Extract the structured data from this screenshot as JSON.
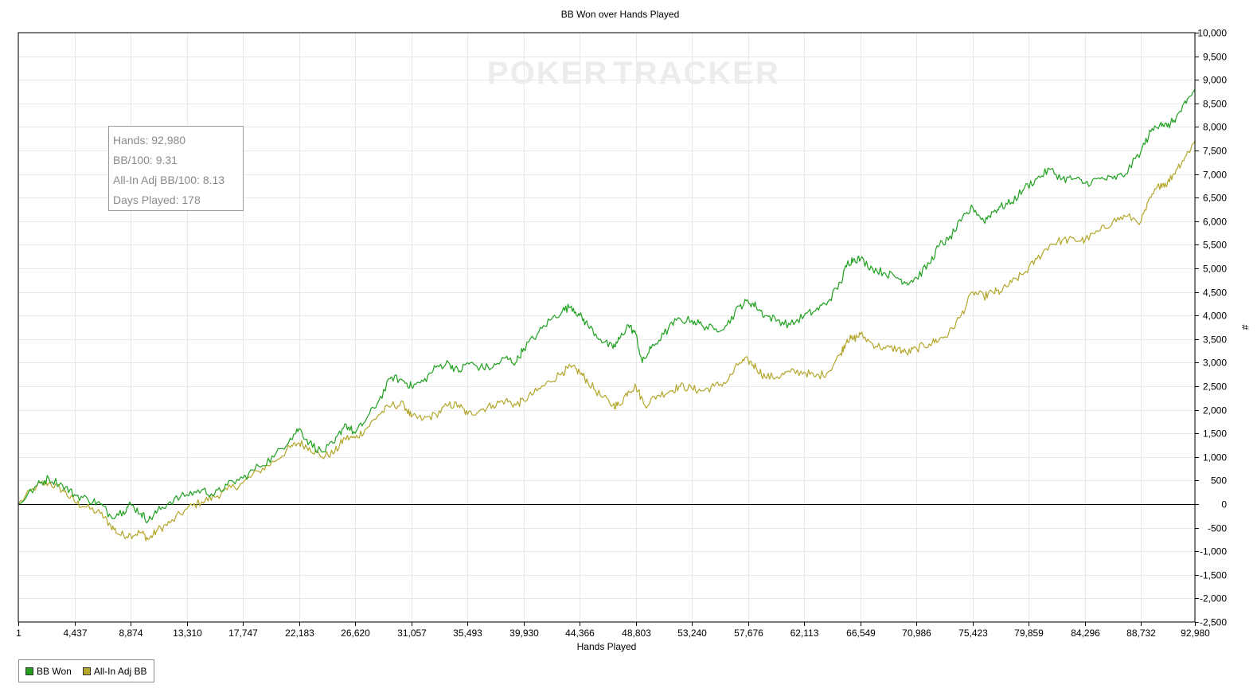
{
  "chart_data": {
    "type": "line",
    "title": "BB Won over Hands Played",
    "xlabel": "Hands Played",
    "ylabel": "#",
    "watermark": {
      "part1": "POKER",
      "part2": "TRACKER"
    },
    "xlim": [
      1,
      92980
    ],
    "ylim": [
      -2500,
      10000
    ],
    "x_ticks": [
      1,
      4437,
      8874,
      13310,
      17747,
      22183,
      26620,
      31057,
      35493,
      39930,
      44366,
      48803,
      53240,
      57676,
      62113,
      66549,
      70986,
      75423,
      79859,
      84296,
      88732,
      92980
    ],
    "x_tick_labels": [
      "1",
      "4,437",
      "8,874",
      "13,310",
      "17,747",
      "22,183",
      "26,620",
      "31,057",
      "35,493",
      "39,930",
      "44,366",
      "48,803",
      "53,240",
      "57,676",
      "62,113",
      "66,549",
      "70,986",
      "75,423",
      "79,859",
      "84,296",
      "88,732",
      "92,980"
    ],
    "y_ticks": [
      10000,
      9500,
      9000,
      8500,
      8000,
      7500,
      7000,
      6500,
      6000,
      5500,
      5000,
      4500,
      4000,
      3500,
      3000,
      2500,
      2000,
      1500,
      1000,
      500,
      0,
      -500,
      -1000,
      -1500,
      -2000,
      -2500
    ],
    "y_tick_labels": [
      "10,000",
      "9,500",
      "9,000",
      "8,500",
      "8,000",
      "7,500",
      "7,000",
      "6,500",
      "6,000",
      "5,500",
      "5,000",
      "4,500",
      "4,000",
      "3,500",
      "3,000",
      "2,500",
      "2,000",
      "1,500",
      "1,000",
      "500",
      "0",
      "-500",
      "-1,000",
      "-1,500",
      "-2,000",
      "-2,500"
    ],
    "grid": true,
    "legend_position": "bottom-left",
    "series": [
      {
        "name": "BB Won",
        "color": "#1fa01f",
        "points": [
          [
            1,
            0
          ],
          [
            1500,
            400
          ],
          [
            2400,
            550
          ],
          [
            3500,
            400
          ],
          [
            4437,
            200
          ],
          [
            5500,
            100
          ],
          [
            6500,
            0
          ],
          [
            7300,
            -250
          ],
          [
            8300,
            -150
          ],
          [
            8874,
            0
          ],
          [
            9700,
            -200
          ],
          [
            10300,
            -350
          ],
          [
            11000,
            -150
          ],
          [
            12000,
            50
          ],
          [
            13310,
            200
          ],
          [
            14500,
            300
          ],
          [
            15500,
            200
          ],
          [
            16500,
            400
          ],
          [
            17747,
            550
          ],
          [
            19000,
            800
          ],
          [
            20200,
            1000
          ],
          [
            21500,
            1400
          ],
          [
            22183,
            1600
          ],
          [
            23000,
            1300
          ],
          [
            24000,
            1100
          ],
          [
            25000,
            1300
          ],
          [
            25800,
            1700
          ],
          [
            26620,
            1500
          ],
          [
            27500,
            1800
          ],
          [
            28500,
            2200
          ],
          [
            29500,
            2700
          ],
          [
            30500,
            2600
          ],
          [
            31057,
            2500
          ],
          [
            32000,
            2600
          ],
          [
            33000,
            2900
          ],
          [
            34000,
            3000
          ],
          [
            34800,
            2800
          ],
          [
            35493,
            3000
          ],
          [
            36500,
            2900
          ],
          [
            37500,
            2900
          ],
          [
            38500,
            3100
          ],
          [
            39300,
            3000
          ],
          [
            39930,
            3300
          ],
          [
            41000,
            3600
          ],
          [
            42000,
            3900
          ],
          [
            43000,
            4100
          ],
          [
            43700,
            4200
          ],
          [
            44366,
            4000
          ],
          [
            45000,
            3800
          ],
          [
            46000,
            3500
          ],
          [
            47000,
            3300
          ],
          [
            47500,
            3500
          ],
          [
            48200,
            3800
          ],
          [
            48803,
            3600
          ],
          [
            49300,
            3000
          ],
          [
            50000,
            3300
          ],
          [
            51000,
            3600
          ],
          [
            52000,
            3900
          ],
          [
            53240,
            3900
          ],
          [
            54000,
            3800
          ],
          [
            55000,
            3700
          ],
          [
            56000,
            3800
          ],
          [
            57000,
            4200
          ],
          [
            57676,
            4300
          ],
          [
            58300,
            4200
          ],
          [
            59000,
            4000
          ],
          [
            60000,
            3900
          ],
          [
            61000,
            3800
          ],
          [
            62113,
            4000
          ],
          [
            63000,
            4100
          ],
          [
            64000,
            4300
          ],
          [
            65000,
            4700
          ],
          [
            65500,
            5100
          ],
          [
            66000,
            5200
          ],
          [
            66549,
            5200
          ],
          [
            67500,
            5000
          ],
          [
            68500,
            4900
          ],
          [
            69500,
            4800
          ],
          [
            70200,
            4700
          ],
          [
            70986,
            4800
          ],
          [
            72000,
            5100
          ],
          [
            72800,
            5500
          ],
          [
            73500,
            5600
          ],
          [
            74500,
            6000
          ],
          [
            75423,
            6300
          ],
          [
            76300,
            6000
          ],
          [
            77000,
            6200
          ],
          [
            77600,
            6300
          ],
          [
            78500,
            6400
          ],
          [
            79500,
            6700
          ],
          [
            80500,
            6900
          ],
          [
            81500,
            7100
          ],
          [
            82500,
            6900
          ],
          [
            83500,
            6900
          ],
          [
            84296,
            6800
          ],
          [
            85500,
            6900
          ],
          [
            86500,
            6900
          ],
          [
            87500,
            7000
          ],
          [
            88732,
            7500
          ],
          [
            89500,
            7900
          ],
          [
            90300,
            8100
          ],
          [
            90800,
            8000
          ],
          [
            91500,
            8200
          ],
          [
            92300,
            8500
          ],
          [
            92980,
            8800
          ]
        ]
      },
      {
        "name": "All-In Adj BB",
        "color": "#b3a62a",
        "points": [
          [
            1,
            0
          ],
          [
            1500,
            400
          ],
          [
            2400,
            450
          ],
          [
            3500,
            300
          ],
          [
            4437,
            50
          ],
          [
            5200,
            -50
          ],
          [
            6500,
            -200
          ],
          [
            7300,
            -450
          ],
          [
            8000,
            -650
          ],
          [
            8874,
            -650
          ],
          [
            9700,
            -600
          ],
          [
            10300,
            -750
          ],
          [
            11000,
            -550
          ],
          [
            12000,
            -400
          ],
          [
            13310,
            -100
          ],
          [
            14500,
            50
          ],
          [
            15500,
            150
          ],
          [
            16500,
            300
          ],
          [
            17747,
            450
          ],
          [
            19000,
            700
          ],
          [
            20200,
            900
          ],
          [
            21500,
            1200
          ],
          [
            22183,
            1300
          ],
          [
            23000,
            1200
          ],
          [
            24000,
            1000
          ],
          [
            25000,
            1100
          ],
          [
            25800,
            1400
          ],
          [
            26620,
            1400
          ],
          [
            27500,
            1600
          ],
          [
            28500,
            1900
          ],
          [
            29500,
            2100
          ],
          [
            30500,
            2100
          ],
          [
            31057,
            1850
          ],
          [
            32000,
            1800
          ],
          [
            33000,
            1900
          ],
          [
            34000,
            2100
          ],
          [
            34800,
            2100
          ],
          [
            35493,
            1900
          ],
          [
            36500,
            2000
          ],
          [
            37500,
            2100
          ],
          [
            38500,
            2200
          ],
          [
            39300,
            2100
          ],
          [
            39930,
            2200
          ],
          [
            41000,
            2400
          ],
          [
            42000,
            2600
          ],
          [
            43000,
            2800
          ],
          [
            43700,
            2900
          ],
          [
            44366,
            2800
          ],
          [
            45000,
            2600
          ],
          [
            46000,
            2300
          ],
          [
            47000,
            2100
          ],
          [
            47500,
            2100
          ],
          [
            48200,
            2400
          ],
          [
            48803,
            2500
          ],
          [
            49500,
            2100
          ],
          [
            50500,
            2300
          ],
          [
            51500,
            2400
          ],
          [
            52300,
            2500
          ],
          [
            53240,
            2450
          ],
          [
            54000,
            2400
          ],
          [
            55000,
            2500
          ],
          [
            56000,
            2600
          ],
          [
            57000,
            3000
          ],
          [
            57676,
            3050
          ],
          [
            58300,
            2900
          ],
          [
            59000,
            2700
          ],
          [
            60000,
            2700
          ],
          [
            61000,
            2800
          ],
          [
            62113,
            2800
          ],
          [
            63000,
            2700
          ],
          [
            64000,
            2800
          ],
          [
            65000,
            3200
          ],
          [
            65500,
            3500
          ],
          [
            66000,
            3500
          ],
          [
            66549,
            3600
          ],
          [
            67500,
            3400
          ],
          [
            68500,
            3300
          ],
          [
            69500,
            3300
          ],
          [
            70200,
            3200
          ],
          [
            70986,
            3300
          ],
          [
            72000,
            3400
          ],
          [
            72800,
            3500
          ],
          [
            73500,
            3600
          ],
          [
            74500,
            4000
          ],
          [
            75423,
            4500
          ],
          [
            76300,
            4400
          ],
          [
            77000,
            4500
          ],
          [
            77600,
            4500
          ],
          [
            78500,
            4700
          ],
          [
            79500,
            4900
          ],
          [
            80500,
            5200
          ],
          [
            81500,
            5500
          ],
          [
            82500,
            5600
          ],
          [
            83500,
            5600
          ],
          [
            84296,
            5600
          ],
          [
            85500,
            5800
          ],
          [
            86500,
            6000
          ],
          [
            87500,
            6100
          ],
          [
            88732,
            6000
          ],
          [
            89500,
            6500
          ],
          [
            90300,
            6800
          ],
          [
            90800,
            6800
          ],
          [
            91500,
            7100
          ],
          [
            92300,
            7400
          ],
          [
            92980,
            7700
          ]
        ]
      }
    ]
  },
  "stats": {
    "hands": "Hands: 92,980",
    "bb100": "BB/100: 9.31",
    "allin_adj": "All-In Adj BB/100: 8.13",
    "days": "Days Played: 178"
  },
  "legend": [
    {
      "label": "BB Won",
      "color": "#1fa01f"
    },
    {
      "label": "All-In Adj BB",
      "color": "#b3a62a"
    }
  ]
}
